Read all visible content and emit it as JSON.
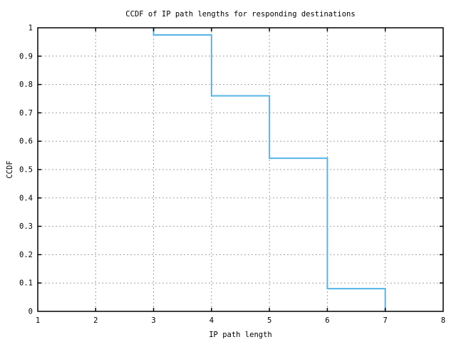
{
  "page": {
    "background": "#ffffff",
    "text_color": "#000000"
  },
  "chart_data": {
    "type": "line",
    "style": "step",
    "title": "CCDF of IP path lengths for responding destinations",
    "xlabel": "IP path length",
    "ylabel": "CCDF",
    "xlim": [
      1,
      8
    ],
    "ylim": [
      0,
      1
    ],
    "xticks": {
      "values": [
        1,
        2,
        3,
        4,
        5,
        6,
        7,
        8
      ],
      "labels": [
        "1",
        "2",
        "3",
        "4",
        "5",
        "6",
        "7",
        "8"
      ]
    },
    "yticks": {
      "values": [
        0,
        0.1,
        0.2,
        0.3,
        0.4,
        0.5,
        0.6,
        0.7,
        0.8,
        0.9,
        1
      ],
      "labels": [
        "0",
        "0.1",
        "0.2",
        "0.3",
        "0.4",
        "0.5",
        "0.6",
        "0.7",
        "0.8",
        "0.9",
        "1"
      ]
    },
    "grid": {
      "show": true,
      "style": "dashed",
      "color": "#a0a0a0"
    },
    "legend": {
      "show": false
    },
    "axis_color": "#000000",
    "series": [
      {
        "name": "ccdf-step-line",
        "color": "#56b4e9",
        "line_width": 2,
        "points": [
          [
            3,
            1
          ],
          [
            3,
            0.975
          ],
          [
            4,
            0.975
          ],
          [
            4,
            0.76
          ],
          [
            5,
            0.76
          ],
          [
            5,
            0.54
          ],
          [
            6,
            0.54
          ],
          [
            6,
            0.08
          ],
          [
            7,
            0.08
          ],
          [
            7,
            0
          ]
        ]
      }
    ]
  }
}
